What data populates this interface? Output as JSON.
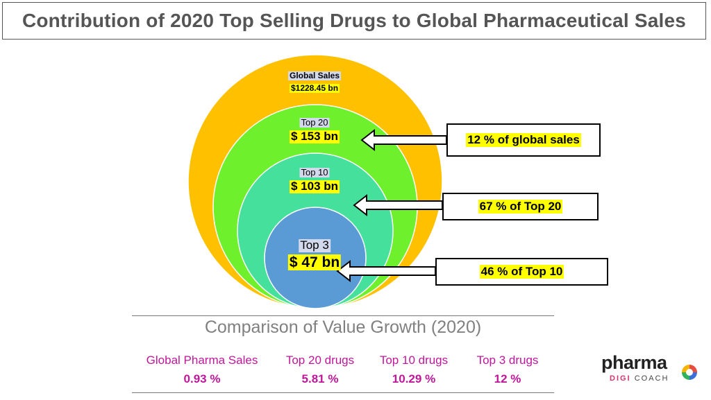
{
  "title": "Contribution of 2020 Top Selling Drugs to Global Pharmaceutical Sales",
  "circles": [
    {
      "label": "Global Sales",
      "value": "$1228.45 bn",
      "color": "#ffc000"
    },
    {
      "label": "Top 20",
      "value": "$ 153 bn",
      "color": "#6ff02c"
    },
    {
      "label": "Top 10",
      "value": "$ 103 bn",
      "color": "#45e19c"
    },
    {
      "label": "Top 3",
      "value": "$ 47 bn",
      "color": "#5b9bd5"
    }
  ],
  "callouts": [
    {
      "text": "12 % of global sales"
    },
    {
      "text": "67 % of Top 20"
    },
    {
      "text": "46 % of Top 10"
    }
  ],
  "comparison": {
    "title": "Comparison of Value Growth (2020)",
    "items": [
      {
        "label": "Global Pharma Sales",
        "value": "0.93 %"
      },
      {
        "label": "Top 20 drugs",
        "value": "5.81 %"
      },
      {
        "label": "Top 10 drugs",
        "value": "10.29 %"
      },
      {
        "label": "Top 3 drugs",
        "value": "12 %"
      }
    ]
  },
  "logo": {
    "main": "pharma",
    "sub1": "DIGI",
    "sub2": "COACH"
  },
  "colors": {
    "title": "#555555",
    "growth_text": "#c0169a",
    "highlight": "#ffff00"
  }
}
